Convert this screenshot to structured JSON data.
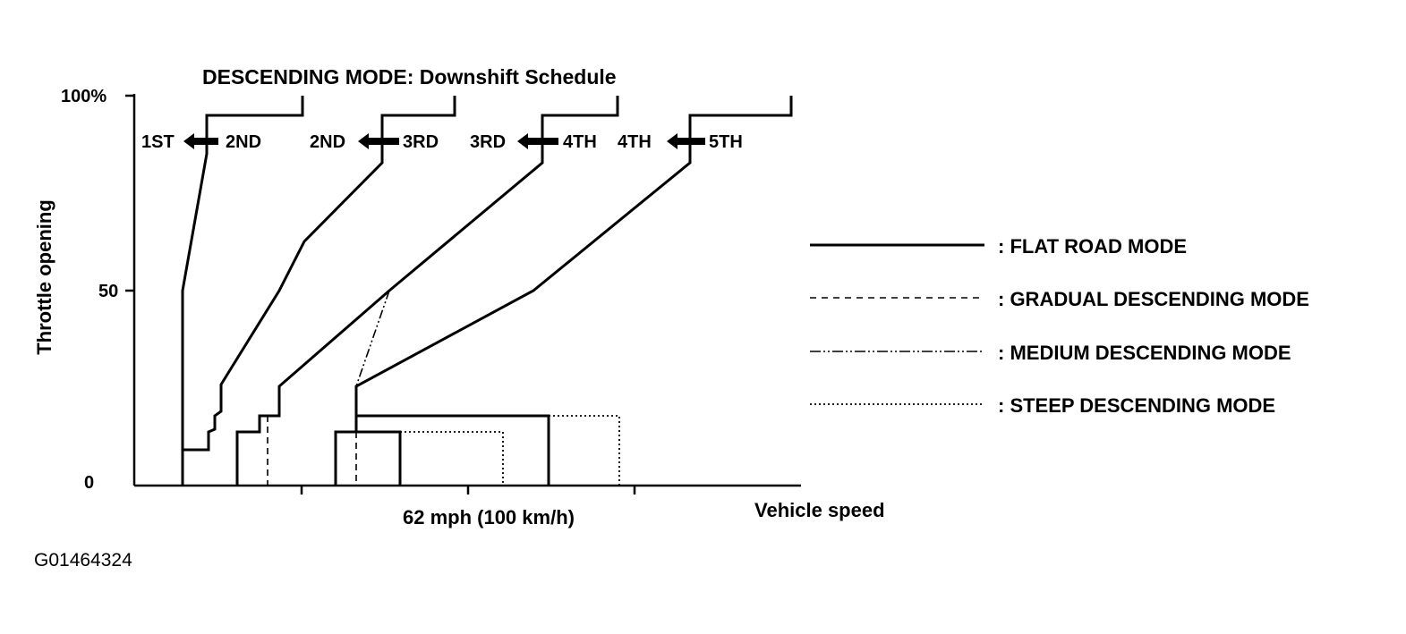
{
  "chart_data": {
    "type": "line",
    "title": "DESCENDING MODE: Downshift Schedule",
    "xlabel": "Vehicle speed",
    "ylabel": "Throttle opening",
    "x_tick_label": "62 mph (100 km/h)",
    "y_ticks": [
      "0",
      "50",
      "100%"
    ],
    "ylim": [
      0,
      100
    ],
    "grid": false,
    "legend_position": "right",
    "shift_labels": [
      {
        "from": "2ND",
        "to": "1ST"
      },
      {
        "from": "3RD",
        "to": "2ND"
      },
      {
        "from": "4TH",
        "to": "3RD"
      },
      {
        "from": "5TH",
        "to": "4TH"
      }
    ],
    "series": [
      {
        "name": "FLAT ROAD MODE",
        "style": "solid"
      },
      {
        "name": "GRADUAL DESCENDING MODE",
        "style": "dashed"
      },
      {
        "name": "MEDIUM DESCENDING MODE",
        "style": "dash-dot-dot"
      },
      {
        "name": "STEEP DESCENDING MODE",
        "style": "dotted"
      }
    ]
  },
  "legend": [
    {
      "label": ": FLAT ROAD MODE"
    },
    {
      "label": ": GRADUAL DESCENDING MODE"
    },
    {
      "label": ": MEDIUM DESCENDING MODE"
    },
    {
      "label": ": STEEP DESCENDING MODE"
    }
  ],
  "figure_id": "G01464324"
}
